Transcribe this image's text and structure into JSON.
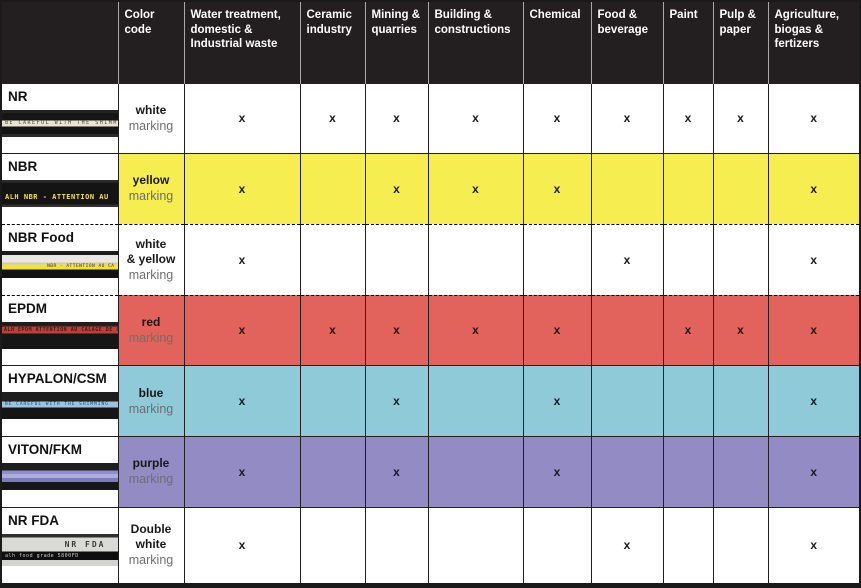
{
  "table": {
    "header": {
      "material_column": "",
      "color_code": "Color\ncode",
      "columns": [
        "Water treatment, domestic & Industrial waste",
        "Ceramic industry",
        "Mining & quarries",
        "Building & constructions",
        "Chemical",
        "Food & beverage",
        "Paint",
        "Pulp & paper",
        "Agriculture, biogas & fertizers"
      ]
    },
    "rows": [
      {
        "material": "NR",
        "marking_label": "white",
        "marking_word": "marking",
        "row_bg": "#ffffff",
        "dashed_top": false,
        "hose": {
          "style": "nr",
          "stripe_text": "BE CAREFUL WITH THE SHIMMING",
          "sub_text": ""
        },
        "cells": [
          "x",
          "x",
          "x",
          "x",
          "x",
          "x",
          "x",
          "x",
          "x"
        ]
      },
      {
        "material": "NBR",
        "marking_label": "yellow",
        "marking_word": "marking",
        "row_bg": "#f6ed51",
        "dashed_top": false,
        "hose": {
          "style": "nbr",
          "stripe_text": "ALH NBR - ATTENTION AU",
          "sub_text": ""
        },
        "cells": [
          "x",
          "",
          "x",
          "x",
          "x",
          "",
          "",
          "",
          "x"
        ]
      },
      {
        "material": "NBR Food",
        "marking_label": "white\n& yellow",
        "marking_word": "marking",
        "row_bg": "#ffffff",
        "dashed_top": true,
        "hose": {
          "style": "nbrfood",
          "stripe_text": "NBR - ATTENTION AU CA",
          "sub_text": ""
        },
        "cells": [
          "x",
          "",
          "",
          "",
          "",
          "x",
          "",
          "",
          "x"
        ]
      },
      {
        "material": "EPDM",
        "marking_label": "red",
        "marking_word": "marking",
        "row_bg": "#e2635b",
        "dashed_top": true,
        "hose": {
          "style": "epdm",
          "stripe_text": "ALH EPDM ATTENTION AU CALAGE DE C",
          "sub_text": ""
        },
        "cells": [
          "x",
          "x",
          "x",
          "x",
          "x",
          "",
          "x",
          "x",
          "x"
        ]
      },
      {
        "material": "HYPALON/CSM",
        "marking_label": "blue",
        "marking_word": "marking",
        "row_bg": "#8ecad8",
        "dashed_top": false,
        "hose": {
          "style": "hypalon",
          "stripe_text": "BE CAREFUL WITH THE SHIMMING",
          "sub_text": ""
        },
        "cells": [
          "x",
          "",
          "x",
          "",
          "x",
          "",
          "",
          "",
          "x"
        ]
      },
      {
        "material": "VITON/FKM",
        "marking_label": "purple",
        "marking_word": "marking",
        "row_bg": "#938bc3",
        "dashed_top": false,
        "hose": {
          "style": "viton",
          "stripe_text": "",
          "sub_text": ""
        },
        "cells": [
          "x",
          "",
          "x",
          "",
          "x",
          "",
          "",
          "",
          "x"
        ]
      },
      {
        "material": "NR FDA",
        "marking_label": "Double\nwhite",
        "marking_word": "marking",
        "row_bg": "#ffffff",
        "dashed_top": false,
        "hose": {
          "style": "nrfda",
          "stripe_text": "NR FDA",
          "sub_text": "alh food grade 5800FD"
        },
        "cells": [
          "x",
          "",
          "",
          "",
          "",
          "x",
          "",
          "",
          "x"
        ]
      }
    ],
    "colors": {
      "header_bg": "#231f20",
      "yellow": "#f6ed51",
      "red": "#e2635b",
      "blue": "#8ecad8",
      "purple": "#938bc3"
    }
  }
}
